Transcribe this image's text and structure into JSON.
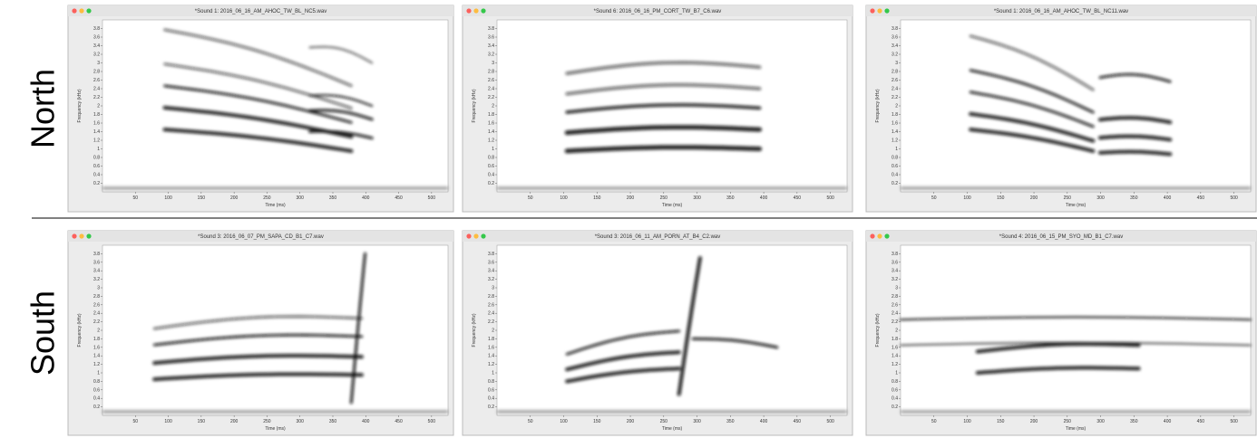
{
  "rows": [
    {
      "label": "North",
      "panels": [
        {
          "title": "*Sound 1: 2016_06_16_AM_AHOC_TW_BL_NC5.wav"
        },
        {
          "title": "*Sound 6: 2016_06_16_PM_CORT_TW_B7_C6.wav"
        },
        {
          "title": "*Sound 1: 2016_06_16_AM_AHOC_TW_BL_NC11.wav"
        }
      ]
    },
    {
      "label": "South",
      "panels": [
        {
          "title": "*Sound 3: 2016_06_07_PM_SAPA_CD_B1_C7.wav"
        },
        {
          "title": "*Sound 3: 2016_06_11_AM_PORN_AT_B4_C2.wav"
        },
        {
          "title": "*Sound 4: 2016_06_15_PM_SYO_MD_B1_C7.wav"
        }
      ]
    }
  ],
  "axes": {
    "x_label": "Time (ms)",
    "y_label": "Frequency (kHz)",
    "x_ticks": [
      50,
      100,
      150,
      200,
      250,
      300,
      350,
      400,
      450,
      500
    ],
    "y_ticks": [
      0.2,
      0.4,
      0.6,
      0.8,
      1,
      1.2,
      1.4,
      1.6,
      1.8,
      2,
      2.2,
      2.4,
      2.6,
      2.8,
      3,
      3.2,
      3.4,
      3.6,
      3.8
    ]
  }
}
